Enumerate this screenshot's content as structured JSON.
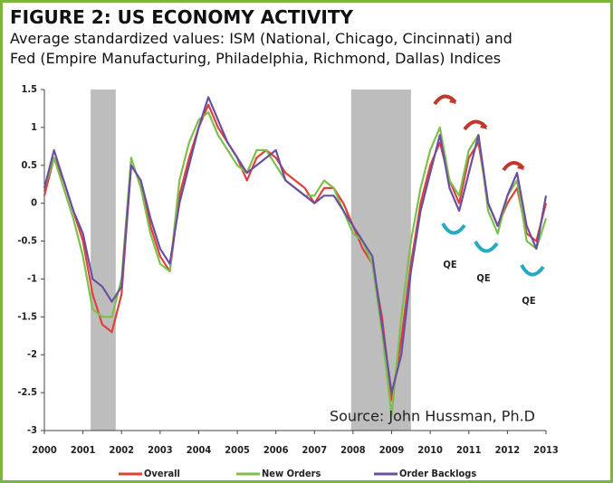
{
  "chart_data": {
    "type": "line",
    "title": "FIGURE 2: US ECONOMY ACTIVITY",
    "subtitle": [
      "Average standardized values: ISM (National, Chicago, Cincinnati) and",
      "Fed (Empire Manufacturing, Philadelphia, Richmond, Dallas) Indices"
    ],
    "annotations": [
      "QE",
      "QE",
      "QE",
      "Source: John Hussman, Ph.D"
    ],
    "shaded_regions": [
      [
        2001.2,
        2001.85
      ],
      [
        2007.95,
        2009.5
      ]
    ],
    "x": [
      2000,
      2000.25,
      2000.5,
      2000.75,
      2001,
      2001.25,
      2001.5,
      2001.75,
      2002,
      2002.25,
      2002.5,
      2002.75,
      2003,
      2003.25,
      2003.5,
      2003.75,
      2004,
      2004.25,
      2004.5,
      2004.75,
      2005,
      2005.25,
      2005.5,
      2005.75,
      2006,
      2006.25,
      2006.5,
      2006.75,
      2007,
      2007.25,
      2007.5,
      2007.75,
      2008,
      2008.25,
      2008.5,
      2008.75,
      2009,
      2009.25,
      2009.5,
      2009.75,
      2010,
      2010.25,
      2010.5,
      2010.75,
      2011,
      2011.25,
      2011.5,
      2011.75,
      2012,
      2012.25,
      2012.5,
      2012.75,
      2013
    ],
    "series": [
      {
        "name": "Overall",
        "color": "#e0403a",
        "values": [
          0.1,
          0.6,
          0.3,
          -0.1,
          -0.5,
          -1.2,
          -1.6,
          -1.7,
          -1.2,
          0.5,
          0.3,
          -0.3,
          -0.7,
          -0.9,
          0.1,
          0.6,
          1.0,
          1.3,
          1.0,
          0.8,
          0.6,
          0.3,
          0.6,
          0.7,
          0.6,
          0.4,
          0.3,
          0.2,
          0.0,
          0.2,
          0.2,
          0.0,
          -0.3,
          -0.6,
          -0.8,
          -1.5,
          -2.6,
          -1.8,
          -0.8,
          0.0,
          0.5,
          0.8,
          0.3,
          0.0,
          0.6,
          0.8,
          0.0,
          -0.3,
          0.0,
          0.2,
          -0.4,
          -0.5,
          0.0
        ]
      },
      {
        "name": "New Orders",
        "color": "#7cc04b",
        "values": [
          0.2,
          0.6,
          0.2,
          -0.2,
          -0.7,
          -1.4,
          -1.5,
          -1.5,
          -1.0,
          0.6,
          0.2,
          -0.4,
          -0.8,
          -0.9,
          0.3,
          0.8,
          1.1,
          1.2,
          0.9,
          0.7,
          0.5,
          0.4,
          0.7,
          0.7,
          0.5,
          0.3,
          0.2,
          0.1,
          0.1,
          0.3,
          0.2,
          -0.1,
          -0.4,
          -0.5,
          -0.8,
          -1.7,
          -2.8,
          -1.5,
          -0.5,
          0.2,
          0.7,
          1.0,
          0.3,
          0.1,
          0.7,
          0.9,
          -0.1,
          -0.4,
          0.1,
          0.3,
          -0.5,
          -0.6,
          -0.2
        ]
      },
      {
        "name": "Order Backlogs",
        "color": "#6a4fa0",
        "values": [
          0.2,
          0.7,
          0.3,
          -0.1,
          -0.4,
          -1.0,
          -1.1,
          -1.3,
          -1.1,
          0.5,
          0.3,
          -0.2,
          -0.6,
          -0.8,
          0.0,
          0.5,
          1.0,
          1.4,
          1.1,
          0.8,
          0.6,
          0.4,
          0.5,
          0.6,
          0.7,
          0.3,
          0.2,
          0.1,
          0.0,
          0.1,
          0.1,
          -0.1,
          -0.3,
          -0.5,
          -0.7,
          -1.6,
          -2.5,
          -2.0,
          -0.9,
          -0.1,
          0.4,
          0.9,
          0.2,
          -0.1,
          0.4,
          0.9,
          0.0,
          -0.3,
          0.1,
          0.4,
          -0.3,
          -0.6,
          0.1
        ]
      }
    ],
    "xlim": [
      2000,
      2013
    ],
    "xticks": [
      2000,
      2001,
      2002,
      2003,
      2004,
      2005,
      2006,
      2007,
      2008,
      2009,
      2010,
      2011,
      2012,
      2013
    ],
    "ylim": [
      -3,
      1.5
    ],
    "yticks": [
      1.5,
      1,
      0.5,
      0,
      -0.5,
      -1,
      -1.5,
      -2,
      -2.5,
      -3
    ],
    "grid": false
  }
}
